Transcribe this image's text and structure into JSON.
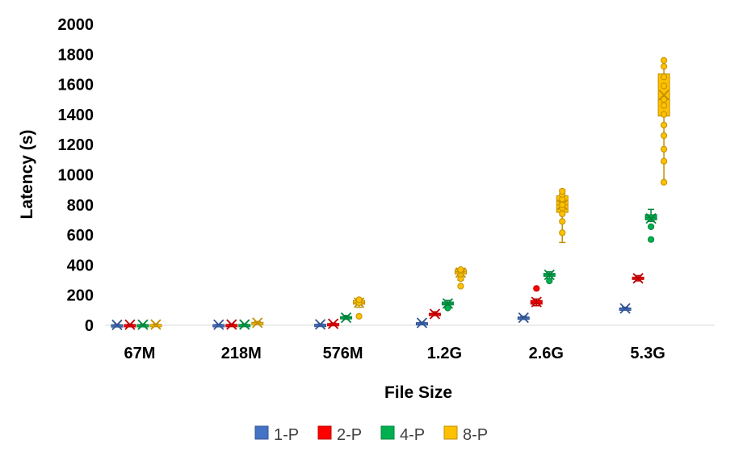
{
  "chart_data": {
    "type": "box",
    "title": "",
    "xlabel": "File Size",
    "ylabel": "Latency (s)",
    "categories": [
      "67M",
      "218M",
      "576M",
      "1.2G",
      "2.6G",
      "5.3G"
    ],
    "ylim": [
      0,
      2000
    ],
    "yticks": [
      0,
      200,
      400,
      600,
      800,
      1000,
      1200,
      1400,
      1600,
      1800,
      2000
    ],
    "grid": false,
    "legend_position": "bottom",
    "series": [
      {
        "name": "1-P",
        "color": "#4472C4",
        "boxes": [
          {
            "category": "67M",
            "min": 1,
            "q1": 2,
            "median": 3,
            "q3": 4,
            "max": 5,
            "mean": 3,
            "points": []
          },
          {
            "category": "218M",
            "min": 2,
            "q1": 3,
            "median": 4,
            "q3": 5,
            "max": 6,
            "mean": 4,
            "points": []
          },
          {
            "category": "576M",
            "min": 4,
            "q1": 5,
            "median": 6,
            "q3": 7,
            "max": 8,
            "mean": 6,
            "points": []
          },
          {
            "category": "1.2G",
            "min": 12,
            "q1": 14,
            "median": 16,
            "q3": 18,
            "max": 20,
            "mean": 16,
            "points": []
          },
          {
            "category": "2.6G",
            "min": 40,
            "q1": 45,
            "median": 50,
            "q3": 55,
            "max": 60,
            "mean": 50,
            "points": []
          },
          {
            "category": "5.3G",
            "min": 105,
            "q1": 110,
            "median": 112,
            "q3": 115,
            "max": 120,
            "mean": 112,
            "points": []
          }
        ]
      },
      {
        "name": "2-P",
        "color": "#FF0000",
        "boxes": [
          {
            "category": "67M",
            "min": 2,
            "q1": 3,
            "median": 4,
            "q3": 5,
            "max": 6,
            "mean": 4,
            "points": []
          },
          {
            "category": "218M",
            "min": 3,
            "q1": 4,
            "median": 5,
            "q3": 6,
            "max": 7,
            "mean": 5,
            "points": []
          },
          {
            "category": "576M",
            "min": 7,
            "q1": 9,
            "median": 10,
            "q3": 12,
            "max": 14,
            "mean": 10,
            "points": []
          },
          {
            "category": "1.2G",
            "min": 65,
            "q1": 70,
            "median": 75,
            "q3": 80,
            "max": 90,
            "mean": 75,
            "points": []
          },
          {
            "category": "2.6G",
            "min": 130,
            "q1": 140,
            "median": 150,
            "q3": 165,
            "max": 175,
            "mean": 155,
            "points": [
              245
            ]
          },
          {
            "category": "5.3G",
            "min": 295,
            "q1": 305,
            "median": 312,
            "q3": 320,
            "max": 330,
            "mean": 312,
            "points": []
          }
        ]
      },
      {
        "name": "4-P",
        "color": "#00B050",
        "boxes": [
          {
            "category": "67M",
            "min": 2,
            "q1": 3,
            "median": 4,
            "q3": 5,
            "max": 6,
            "mean": 4,
            "points": []
          },
          {
            "category": "218M",
            "min": 3,
            "q1": 4,
            "median": 5,
            "q3": 6,
            "max": 7,
            "mean": 5,
            "points": []
          },
          {
            "category": "576M",
            "min": 40,
            "q1": 45,
            "median": 50,
            "q3": 58,
            "max": 65,
            "mean": 50,
            "points": []
          },
          {
            "category": "1.2G",
            "min": 120,
            "q1": 135,
            "median": 145,
            "q3": 155,
            "max": 165,
            "mean": 145,
            "points": [
              115
            ]
          },
          {
            "category": "2.6G",
            "min": 310,
            "q1": 325,
            "median": 335,
            "q3": 345,
            "max": 355,
            "mean": 335,
            "points": [
              295
            ]
          },
          {
            "category": "5.3G",
            "min": 690,
            "q1": 700,
            "median": 715,
            "q3": 735,
            "max": 770,
            "mean": 710,
            "points": [
              655,
              570
            ]
          }
        ]
      },
      {
        "name": "8-P",
        "color": "#FFC000",
        "boxes": [
          {
            "category": "67M",
            "min": 3,
            "q1": 4,
            "median": 5,
            "q3": 6,
            "max": 8,
            "mean": 5,
            "points": []
          },
          {
            "category": "218M",
            "min": 10,
            "q1": 14,
            "median": 17,
            "q3": 20,
            "max": 25,
            "mean": 17,
            "points": []
          },
          {
            "category": "576M",
            "min": 120,
            "q1": 140,
            "median": 150,
            "q3": 165,
            "max": 175,
            "mean": 150,
            "points": [
              60,
              150,
              170
            ]
          },
          {
            "category": "1.2G",
            "min": 300,
            "q1": 340,
            "median": 355,
            "q3": 370,
            "max": 375,
            "mean": 350,
            "points": [
              260,
              310,
              340,
              360,
              370
            ]
          },
          {
            "category": "2.6G",
            "min": 550,
            "q1": 750,
            "median": 800,
            "q3": 860,
            "max": 900,
            "mean": 800,
            "points": [
              615,
              690,
              740,
              780,
              800,
              840,
              870,
              890
            ]
          },
          {
            "category": "5.3G",
            "min": 950,
            "q1": 1390,
            "median": 1500,
            "q3": 1670,
            "max": 1760,
            "mean": 1530,
            "points": [
              950,
              1090,
              1170,
              1260,
              1330,
              1400,
              1460,
              1500,
              1590,
              1650,
              1720,
              1760
            ]
          }
        ]
      }
    ]
  }
}
